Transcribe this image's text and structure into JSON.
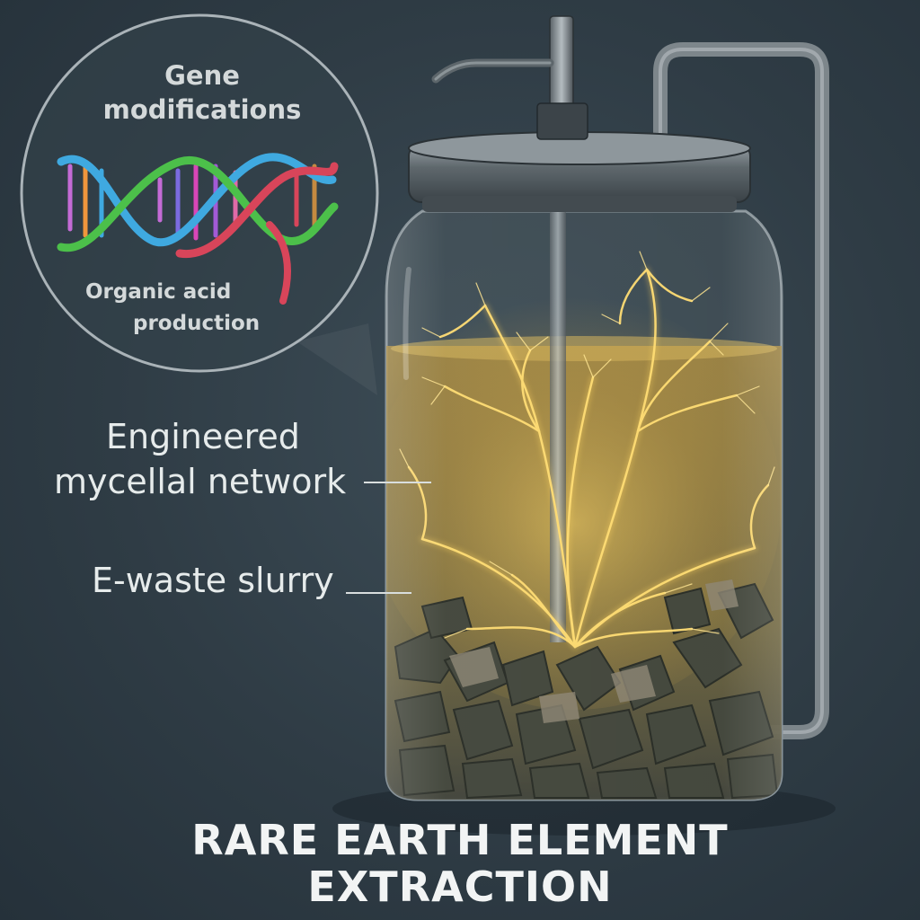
{
  "callout": {
    "title_line1": "Gene",
    "title_line2": "modifications",
    "sub_line1": "Organic acid",
    "sub_line2": "production"
  },
  "labels": {
    "mycelial_line1": "Engineered",
    "mycelial_line2": "mycellal network",
    "slurry": "E-waste slurry"
  },
  "title": {
    "line1": "RARE EARTH ELEMENT",
    "line2": "EXTRACTION"
  },
  "colors": {
    "background": "#2f3c45",
    "liquid": "#b8953c",
    "mycelium_glow": "#ffd35a",
    "dna_strand_a": "#3fa9e0",
    "dna_strand_b": "#d8455a",
    "dna_strand_c": "#4cc04a"
  }
}
